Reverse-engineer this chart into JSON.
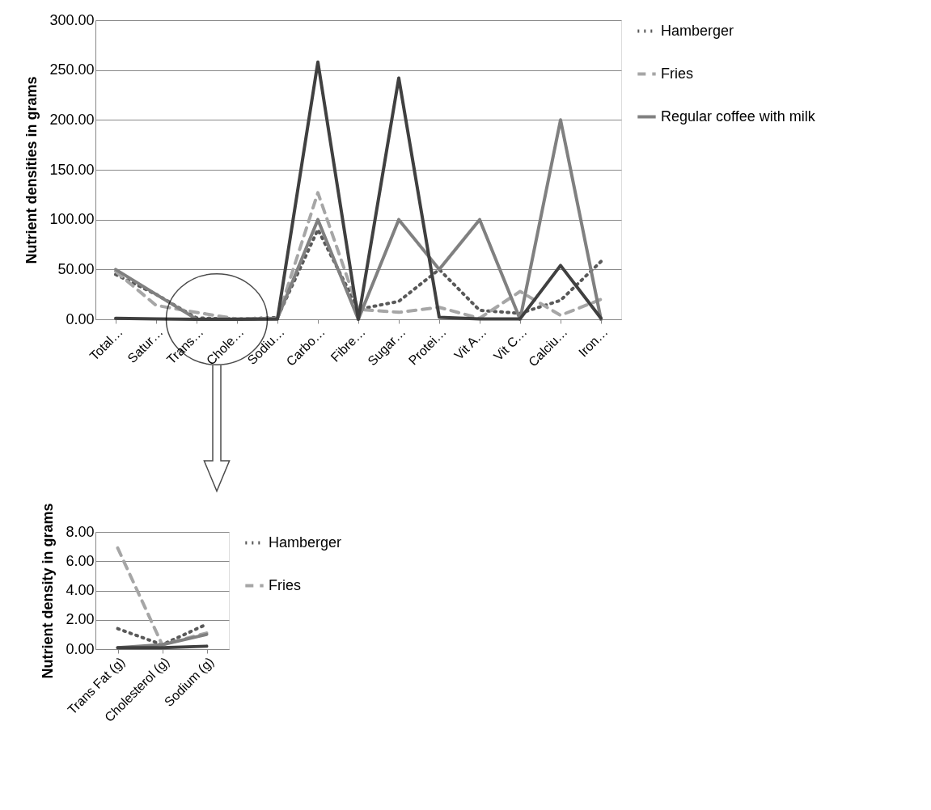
{
  "chart_data": [
    {
      "type": "line",
      "ylabel": "Nutrient densities in grams",
      "categories": [
        "Total…",
        "Satur…",
        "Trans…",
        "Chole…",
        "Sodiu…",
        "Carbo…",
        "Fibre…",
        "Sugar…",
        "Protei…",
        "Vit A…",
        "Vit C…",
        "Calciu…",
        "Iron…"
      ],
      "ylim": [
        0,
        300
      ],
      "yticks": [
        {
          "value": 0,
          "label": "0.00"
        },
        {
          "value": 50,
          "label": "50.00"
        },
        {
          "value": 100,
          "label": "100.00"
        },
        {
          "value": 150,
          "label": "150.00"
        },
        {
          "value": 200,
          "label": "200.00"
        },
        {
          "value": 250,
          "label": "250.00"
        },
        {
          "value": 300,
          "label": "300.00"
        }
      ],
      "grid": "y",
      "legend": "right",
      "marker": "none",
      "series": [
        {
          "name": "Hamberger",
          "color": "#595959",
          "line_style": "dotted",
          "values": [
            45,
            25,
            1.4,
            0.3,
            1.7,
            90,
            10,
            18,
            50,
            9,
            6,
            19,
            58
          ]
        },
        {
          "name": "Fries",
          "color": "#a6a6a6",
          "line_style": "dashed",
          "values": [
            48,
            14,
            6.9,
            0.3,
            1.1,
            127,
            10,
            7,
            12,
            1,
            28,
            4,
            20
          ]
        },
        {
          "name": "Regular coffee with milk",
          "color": "#808080",
          "line_style": "solid",
          "values": [
            50,
            25,
            0.1,
            0.3,
            1,
            100,
            0,
            100,
            50,
            100,
            0,
            200,
            0
          ]
        },
        {
          "color": "#404040",
          "line_style": "solid",
          "values": [
            1,
            0.5,
            0.1,
            0.1,
            0.2,
            258,
            0,
            242,
            2,
            0.5,
            0.5,
            54,
            1
          ]
        }
      ]
    },
    {
      "type": "line",
      "ylabel": "Nutrient density in grams",
      "categories": [
        "Trans Fat (g)",
        "Cholesterol (g)",
        "Sodium (g)"
      ],
      "ylim": [
        0,
        8
      ],
      "yticks": [
        {
          "value": 0,
          "label": "0.00"
        },
        {
          "value": 2,
          "label": "2.00"
        },
        {
          "value": 4,
          "label": "4.00"
        },
        {
          "value": 6,
          "label": "6.00"
        },
        {
          "value": 8,
          "label": "8.00"
        }
      ],
      "grid": "y",
      "legend": "right",
      "marker": "none",
      "series": [
        {
          "name": "Hamberger",
          "color": "#595959",
          "line_style": "dotted",
          "values": [
            1.4,
            0.3,
            1.7
          ]
        },
        {
          "name": "Fries",
          "color": "#a6a6a6",
          "line_style": "dashed",
          "values": [
            6.9,
            0.3,
            1.1
          ]
        },
        {
          "color": "#808080",
          "line_style": "solid",
          "values": [
            0.1,
            0.3,
            1
          ]
        },
        {
          "color": "#404040",
          "line_style": "solid",
          "values": [
            0.1,
            0.1,
            0.2
          ]
        }
      ]
    }
  ]
}
